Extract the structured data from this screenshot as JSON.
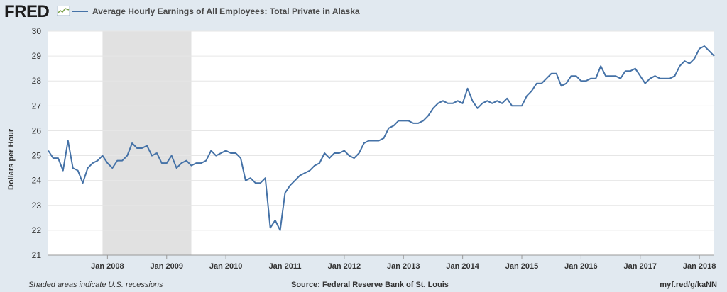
{
  "header": {
    "logo_text": "FRED",
    "legend_label": "Average Hourly Earnings of All Employees: Total Private in Alaska"
  },
  "colors": {
    "series": "#4572a7",
    "recession": "#e1e1e1",
    "background": "#e1e9f0"
  },
  "footer": {
    "note": "Shaded areas indicate U.S. recessions",
    "source": "Source: Federal Reserve Bank of St. Louis",
    "url": "myf.red/g/kaNN"
  },
  "chart_data": {
    "type": "line",
    "title": "",
    "xlabel": "",
    "ylabel": "Dollars per Hour",
    "ylim": [
      21,
      30
    ],
    "xlim": [
      "2007-01",
      "2018-04"
    ],
    "grid": true,
    "legend_position": "top-left",
    "yticks": [
      21,
      22,
      23,
      24,
      25,
      26,
      27,
      28,
      29,
      30
    ],
    "xticks": [
      {
        "date": "2008-01",
        "label": "Jan 2008"
      },
      {
        "date": "2009-01",
        "label": "Jan 2009"
      },
      {
        "date": "2010-01",
        "label": "Jan 2010"
      },
      {
        "date": "2011-01",
        "label": "Jan 2011"
      },
      {
        "date": "2012-01",
        "label": "Jan 2012"
      },
      {
        "date": "2013-01",
        "label": "Jan 2013"
      },
      {
        "date": "2014-01",
        "label": "Jan 2014"
      },
      {
        "date": "2015-01",
        "label": "Jan 2015"
      },
      {
        "date": "2016-01",
        "label": "Jan 2016"
      },
      {
        "date": "2017-01",
        "label": "Jan 2017"
      },
      {
        "date": "2018-01",
        "label": "Jan 2018"
      }
    ],
    "recessions": [
      {
        "start": "2007-12",
        "end": "2009-06"
      }
    ],
    "series": [
      {
        "name": "Average Hourly Earnings of All Employees: Total Private in Alaska",
        "x": [
          "2007-01",
          "2007-02",
          "2007-03",
          "2007-04",
          "2007-05",
          "2007-06",
          "2007-07",
          "2007-08",
          "2007-09",
          "2007-10",
          "2007-11",
          "2007-12",
          "2008-01",
          "2008-02",
          "2008-03",
          "2008-04",
          "2008-05",
          "2008-06",
          "2008-07",
          "2008-08",
          "2008-09",
          "2008-10",
          "2008-11",
          "2008-12",
          "2009-01",
          "2009-02",
          "2009-03",
          "2009-04",
          "2009-05",
          "2009-06",
          "2009-07",
          "2009-08",
          "2009-09",
          "2009-10",
          "2009-11",
          "2009-12",
          "2010-01",
          "2010-02",
          "2010-03",
          "2010-04",
          "2010-05",
          "2010-06",
          "2010-07",
          "2010-08",
          "2010-09",
          "2010-10",
          "2010-11",
          "2010-12",
          "2011-01",
          "2011-02",
          "2011-03",
          "2011-04",
          "2011-05",
          "2011-06",
          "2011-07",
          "2011-08",
          "2011-09",
          "2011-10",
          "2011-11",
          "2011-12",
          "2012-01",
          "2012-02",
          "2012-03",
          "2012-04",
          "2012-05",
          "2012-06",
          "2012-07",
          "2012-08",
          "2012-09",
          "2012-10",
          "2012-11",
          "2012-12",
          "2013-01",
          "2013-02",
          "2013-03",
          "2013-04",
          "2013-05",
          "2013-06",
          "2013-07",
          "2013-08",
          "2013-09",
          "2013-10",
          "2013-11",
          "2013-12",
          "2014-01",
          "2014-02",
          "2014-03",
          "2014-04",
          "2014-05",
          "2014-06",
          "2014-07",
          "2014-08",
          "2014-09",
          "2014-10",
          "2014-11",
          "2014-12",
          "2015-01",
          "2015-02",
          "2015-03",
          "2015-04",
          "2015-05",
          "2015-06",
          "2015-07",
          "2015-08",
          "2015-09",
          "2015-10",
          "2015-11",
          "2015-12",
          "2016-01",
          "2016-02",
          "2016-03",
          "2016-04",
          "2016-05",
          "2016-06",
          "2016-07",
          "2016-08",
          "2016-09",
          "2016-10",
          "2016-11",
          "2016-12",
          "2017-01",
          "2017-02",
          "2017-03",
          "2017-04",
          "2017-05",
          "2017-06",
          "2017-07",
          "2017-08",
          "2017-09",
          "2017-10",
          "2017-11",
          "2017-12",
          "2018-01",
          "2018-02",
          "2018-03",
          "2018-04"
        ],
        "values": [
          25.2,
          24.9,
          24.9,
          24.4,
          25.6,
          24.5,
          24.4,
          23.9,
          24.5,
          24.7,
          24.8,
          25.0,
          24.7,
          24.5,
          24.8,
          24.8,
          25.0,
          25.5,
          25.3,
          25.3,
          25.4,
          25.0,
          25.1,
          24.7,
          24.7,
          25.0,
          24.5,
          24.7,
          24.8,
          24.6,
          24.7,
          24.7,
          24.8,
          25.2,
          25.0,
          25.1,
          25.2,
          25.1,
          25.1,
          24.9,
          24.0,
          24.1,
          23.9,
          23.9,
          24.1,
          22.1,
          22.4,
          22.0,
          23.5,
          23.8,
          24.0,
          24.2,
          24.3,
          24.4,
          24.6,
          24.7,
          25.1,
          24.9,
          25.1,
          25.1,
          25.2,
          25.0,
          24.9,
          25.1,
          25.5,
          25.6,
          25.6,
          25.6,
          25.7,
          26.1,
          26.2,
          26.4,
          26.4,
          26.4,
          26.3,
          26.3,
          26.4,
          26.6,
          26.9,
          27.1,
          27.2,
          27.1,
          27.1,
          27.2,
          27.1,
          27.7,
          27.2,
          26.9,
          27.1,
          27.2,
          27.1,
          27.2,
          27.1,
          27.3,
          27.0,
          27.0,
          27.0,
          27.4,
          27.6,
          27.9,
          27.9,
          28.1,
          28.3,
          28.3,
          27.8,
          27.9,
          28.2,
          28.2,
          28.0,
          28.0,
          28.1,
          28.1,
          28.6,
          28.2,
          28.2,
          28.2,
          28.1,
          28.4,
          28.4,
          28.5,
          28.2,
          27.9,
          28.1,
          28.2,
          28.1,
          28.1,
          28.1,
          28.2,
          28.6,
          28.8,
          28.7,
          28.9,
          29.3,
          29.4,
          29.2,
          29.0
        ]
      }
    ]
  }
}
